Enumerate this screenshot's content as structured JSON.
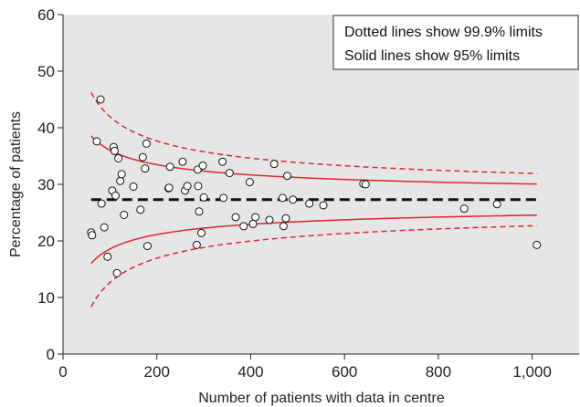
{
  "chart_data": {
    "type": "scatter",
    "xlabel": "Number of patients with data in centre",
    "ylabel": "Percentage of patients",
    "xlim": [
      0,
      1100
    ],
    "ylim": [
      0,
      60
    ],
    "x_ticks": [
      0,
      200,
      400,
      600,
      800,
      1000
    ],
    "x_tick_labels": [
      "0",
      "200",
      "400",
      "600",
      "800",
      "1,000"
    ],
    "y_ticks": [
      0,
      10,
      20,
      30,
      40,
      50,
      60
    ],
    "y_tick_labels": [
      "0",
      "10",
      "20",
      "30",
      "40",
      "50",
      "60"
    ],
    "mean": 27.3,
    "limits_n_range": [
      60,
      1010
    ],
    "legend": [
      "Dotted lines show 99.9% limits",
      "Solid lines show 95% limits"
    ],
    "legend_position": "top-right",
    "colors": {
      "background": "#e6e6e6",
      "limit_lines": "#e0242a",
      "mean_line": "#111111",
      "points_fill": "#ffffff",
      "points_stroke": "#111111"
    },
    "points": [
      [
        60,
        21.5
      ],
      [
        62,
        21.0
      ],
      [
        72,
        37.6
      ],
      [
        80,
        45.0
      ],
      [
        82,
        26.6
      ],
      [
        88,
        22.4
      ],
      [
        95,
        17.2
      ],
      [
        105,
        28.9
      ],
      [
        108,
        36.6
      ],
      [
        110,
        35.9
      ],
      [
        112,
        28.0
      ],
      [
        115,
        14.3
      ],
      [
        118,
        34.6
      ],
      [
        122,
        30.6
      ],
      [
        125,
        31.8
      ],
      [
        130,
        24.6
      ],
      [
        150,
        29.6
      ],
      [
        165,
        25.5
      ],
      [
        170,
        34.8
      ],
      [
        175,
        32.8
      ],
      [
        178,
        37.2
      ],
      [
        180,
        19.1
      ],
      [
        225,
        29.3
      ],
      [
        226,
        29.4
      ],
      [
        228,
        33.1
      ],
      [
        255,
        34.0
      ],
      [
        260,
        28.9
      ],
      [
        265,
        29.7
      ],
      [
        285,
        19.3
      ],
      [
        287,
        32.6
      ],
      [
        288,
        29.7
      ],
      [
        290,
        25.2
      ],
      [
        295,
        21.4
      ],
      [
        298,
        33.3
      ],
      [
        300,
        27.7
      ],
      [
        340,
        34.0
      ],
      [
        342,
        27.6
      ],
      [
        355,
        32.0
      ],
      [
        368,
        24.2
      ],
      [
        385,
        22.6
      ],
      [
        398,
        30.4
      ],
      [
        405,
        23.0
      ],
      [
        410,
        24.2
      ],
      [
        440,
        23.7
      ],
      [
        450,
        33.6
      ],
      [
        468,
        27.6
      ],
      [
        470,
        22.6
      ],
      [
        475,
        24.0
      ],
      [
        478,
        31.5
      ],
      [
        490,
        27.3
      ],
      [
        525,
        26.6
      ],
      [
        555,
        26.3
      ],
      [
        640,
        30.1
      ],
      [
        645,
        30.0
      ],
      [
        855,
        25.7
      ],
      [
        925,
        26.5
      ],
      [
        1010,
        19.3
      ]
    ]
  }
}
